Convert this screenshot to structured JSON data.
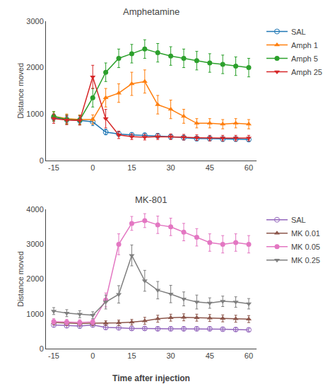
{
  "chart_data": [
    {
      "type": "line",
      "title": "Amphetamine",
      "ylabel": "Distance moved",
      "x": [
        -15,
        -10,
        -5,
        0,
        5,
        10,
        15,
        20,
        25,
        30,
        35,
        40,
        45,
        50,
        55,
        60
      ],
      "series": [
        {
          "name": "SAL",
          "marker": "circle-open",
          "values": [
            920,
            880,
            860,
            830,
            610,
            570,
            550,
            540,
            530,
            510,
            490,
            470,
            470,
            460,
            460,
            450
          ],
          "errors": [
            80,
            70,
            70,
            80,
            60,
            50,
            50,
            50,
            50,
            50,
            50,
            50,
            50,
            50,
            50,
            50
          ]
        },
        {
          "name": "Amph 1",
          "marker": "triangle-up",
          "values": [
            950,
            900,
            880,
            880,
            1350,
            1450,
            1650,
            1700,
            1200,
            1100,
            950,
            800,
            800,
            780,
            800,
            780
          ],
          "errors": [
            100,
            100,
            100,
            100,
            200,
            200,
            250,
            250,
            200,
            200,
            150,
            100,
            100,
            100,
            100,
            100
          ]
        },
        {
          "name": "Amph 5",
          "marker": "circle",
          "values": [
            950,
            880,
            870,
            1350,
            1900,
            2200,
            2300,
            2400,
            2320,
            2250,
            2200,
            2150,
            2100,
            2070,
            2030,
            2000
          ],
          "errors": [
            100,
            100,
            100,
            200,
            200,
            200,
            200,
            200,
            200,
            200,
            200,
            200,
            200,
            200,
            200,
            200
          ]
        },
        {
          "name": "Amph 25",
          "marker": "triangle-down",
          "values": [
            900,
            870,
            860,
            1800,
            900,
            550,
            510,
            500,
            510,
            510,
            500,
            490,
            480,
            480,
            480,
            480
          ],
          "errors": [
            100,
            100,
            100,
            250,
            200,
            80,
            60,
            60,
            60,
            60,
            60,
            60,
            60,
            60,
            60,
            60
          ]
        }
      ],
      "xlim": [
        -18,
        63
      ],
      "xticks": [
        -15,
        0,
        15,
        30,
        45,
        60
      ],
      "ylim": [
        0,
        3000
      ],
      "yticks": [
        0,
        1000,
        2000,
        3000
      ],
      "grid": false,
      "legend": "right"
    },
    {
      "type": "line",
      "title": "MK-801",
      "ylabel": "Distance moved",
      "xlabel": "Time after injection",
      "x": [
        -15,
        -10,
        -5,
        0,
        5,
        10,
        15,
        20,
        25,
        30,
        35,
        40,
        45,
        50,
        55,
        60
      ],
      "series": [
        {
          "name": "SAL",
          "marker": "circle-open",
          "values": [
            680,
            660,
            650,
            680,
            610,
            600,
            580,
            580,
            570,
            570,
            570,
            570,
            570,
            560,
            550,
            540
          ],
          "errors": [
            60,
            60,
            60,
            60,
            60,
            60,
            50,
            50,
            50,
            50,
            50,
            50,
            50,
            50,
            50,
            50
          ]
        },
        {
          "name": "MK 0.01",
          "marker": "triangle-up",
          "values": [
            750,
            730,
            720,
            730,
            730,
            740,
            760,
            800,
            860,
            890,
            900,
            890,
            880,
            870,
            860,
            850
          ],
          "errors": [
            70,
            70,
            70,
            70,
            70,
            80,
            80,
            100,
            100,
            100,
            100,
            100,
            100,
            100,
            100,
            100
          ]
        },
        {
          "name": "MK 0.05",
          "marker": "circle",
          "values": [
            780,
            760,
            750,
            770,
            1400,
            3000,
            3600,
            3680,
            3560,
            3500,
            3350,
            3200,
            3050,
            3000,
            3050,
            3000
          ],
          "errors": [
            80,
            80,
            80,
            80,
            200,
            300,
            200,
            200,
            250,
            250,
            250,
            250,
            250,
            250,
            250,
            250
          ]
        },
        {
          "name": "MK 0.25",
          "marker": "triangle-down",
          "values": [
            1080,
            1020,
            990,
            960,
            1340,
            1560,
            2680,
            1950,
            1680,
            1570,
            1430,
            1340,
            1310,
            1360,
            1340,
            1290
          ],
          "errors": [
            100,
            100,
            100,
            100,
            200,
            250,
            300,
            300,
            250,
            250,
            200,
            200,
            150,
            150,
            150,
            150
          ]
        }
      ],
      "xlim": [
        -18,
        63
      ],
      "xticks": [
        -15,
        0,
        15,
        30,
        45,
        60
      ],
      "ylim": [
        0,
        4000
      ],
      "yticks": [
        0,
        1000,
        2000,
        3000,
        4000
      ],
      "grid": false,
      "legend": "right"
    }
  ]
}
